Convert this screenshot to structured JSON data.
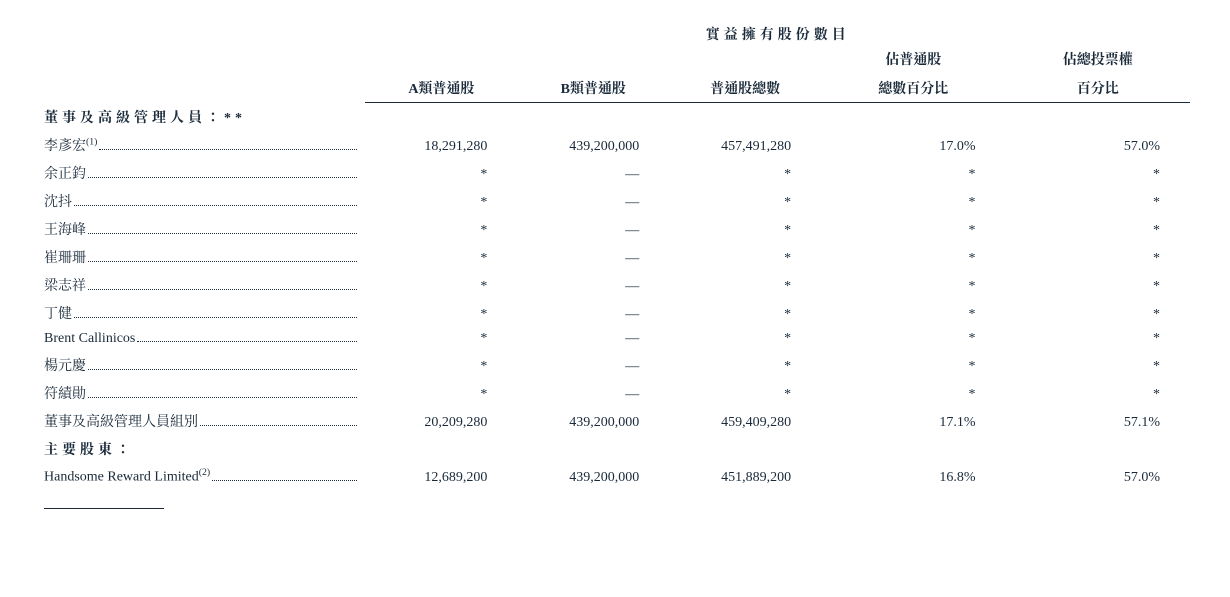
{
  "colors": {
    "text": "#1a2a3a",
    "background": "#ffffff",
    "rule": "#1a2a3a"
  },
  "typography": {
    "base_font_size_pt": 11,
    "header_font_weight": "bold",
    "body_font_weight": "normal",
    "font_family": "Times New Roman / SimSun"
  },
  "table": {
    "type": "table",
    "span_header": "實益擁有股份數目",
    "columns": [
      {
        "id": "class_a",
        "label_line1": "",
        "label_line2": "A類普通股"
      },
      {
        "id": "class_b",
        "label_line1": "",
        "label_line2": "B類普通股"
      },
      {
        "id": "total",
        "label_line1": "",
        "label_line2": "普通股總數"
      },
      {
        "id": "pct_shares",
        "label_line1": "佔普通股",
        "label_line2": "總數百分比"
      },
      {
        "id": "pct_votes",
        "label_line1": "佔總投票權",
        "label_line2": "百分比"
      }
    ],
    "sections": [
      {
        "title": "董事及高級管理人員：**",
        "rows": [
          {
            "name": "李彥宏",
            "sup": "(1)",
            "class_a": "18,291,280",
            "class_b": "439,200,000",
            "total": "457,491,280",
            "pct_shares": "17.0%",
            "pct_votes": "57.0%"
          },
          {
            "name": "余正鈞",
            "sup": "",
            "class_a": "*",
            "class_b": "—",
            "total": "*",
            "pct_shares": "*",
            "pct_votes": "*"
          },
          {
            "name": "沈抖",
            "sup": "",
            "class_a": "*",
            "class_b": "—",
            "total": "*",
            "pct_shares": "*",
            "pct_votes": "*"
          },
          {
            "name": "王海峰",
            "sup": "",
            "class_a": "*",
            "class_b": "—",
            "total": "*",
            "pct_shares": "*",
            "pct_votes": "*"
          },
          {
            "name": "崔珊珊",
            "sup": "",
            "class_a": "*",
            "class_b": "—",
            "total": "*",
            "pct_shares": "*",
            "pct_votes": "*"
          },
          {
            "name": "梁志祥",
            "sup": "",
            "class_a": "*",
            "class_b": "—",
            "total": "*",
            "pct_shares": "*",
            "pct_votes": "*"
          },
          {
            "name": "丁健",
            "sup": "",
            "class_a": "*",
            "class_b": "—",
            "total": "*",
            "pct_shares": "*",
            "pct_votes": "*"
          },
          {
            "name": "Brent Callinicos",
            "sup": "",
            "class_a": "*",
            "class_b": "—",
            "total": "*",
            "pct_shares": "*",
            "pct_votes": "*"
          },
          {
            "name": "楊元慶",
            "sup": "",
            "class_a": "*",
            "class_b": "—",
            "total": "*",
            "pct_shares": "*",
            "pct_votes": "*"
          },
          {
            "name": "符績勛",
            "sup": "",
            "class_a": "*",
            "class_b": "—",
            "total": "*",
            "pct_shares": "*",
            "pct_votes": "*"
          },
          {
            "name": "董事及高級管理人員組別",
            "sup": "",
            "class_a": "20,209,280",
            "class_b": "439,200,000",
            "total": "459,409,280",
            "pct_shares": "17.1%",
            "pct_votes": "57.1%"
          }
        ]
      },
      {
        "title": "主要股東：",
        "rows": [
          {
            "name": "Handsome Reward Limited",
            "sup": "(2)",
            "class_a": "12,689,200",
            "class_b": "439,200,000",
            "total": "451,889,200",
            "pct_shares": "16.8%",
            "pct_votes": "57.0%"
          }
        ]
      }
    ]
  }
}
